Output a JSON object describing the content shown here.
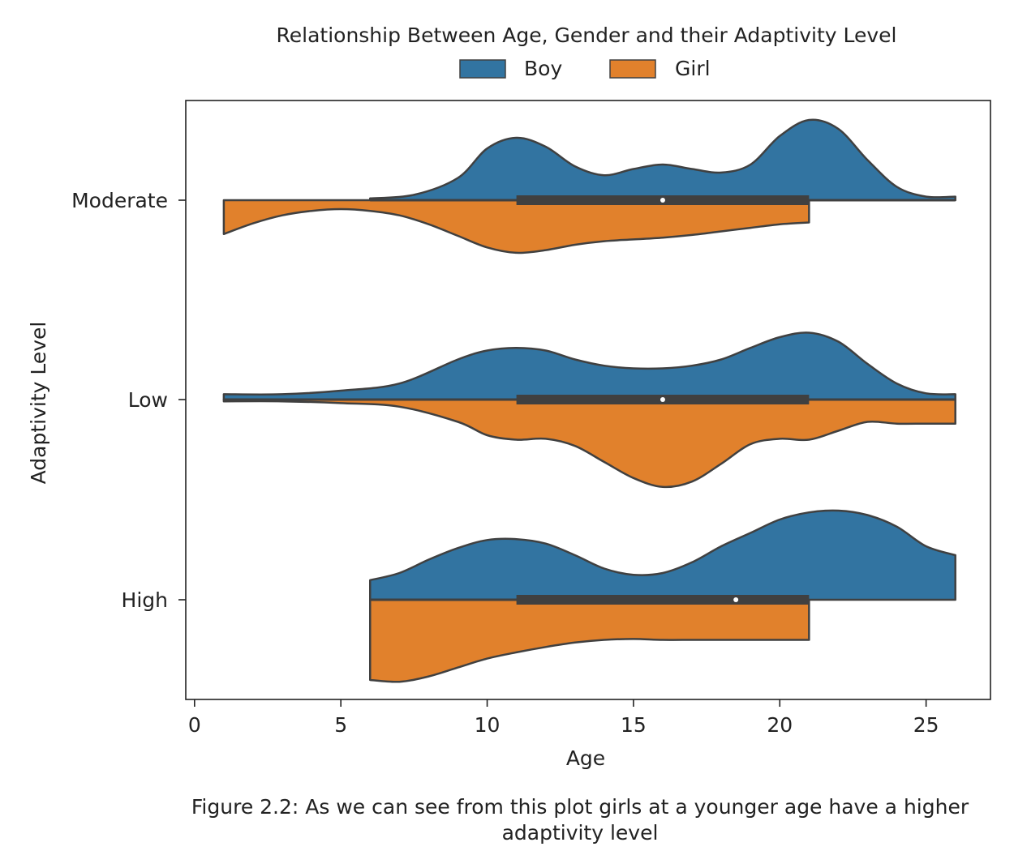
{
  "chart_data": {
    "type": "violin",
    "orientation": "horizontal",
    "split": true,
    "title": "Relationship Between Age, Gender and their Adaptivity Level",
    "xlabel": "Age",
    "ylabel": "Adaptivity Level",
    "xlim": [
      -0.3,
      27.2
    ],
    "xticks": [
      0,
      5,
      10,
      15,
      20,
      25
    ],
    "categories": [
      "Moderate",
      "Low",
      "High"
    ],
    "legend": {
      "position": "top-center",
      "entries": [
        "Boy",
        "Girl"
      ]
    },
    "colors": {
      "Boy": "#3274a1",
      "Girl": "#e1812c",
      "outline": "#404040",
      "box": "#404040",
      "median": "#ffffff"
    },
    "series": [
      {
        "name": "Boy",
        "side": "upper",
        "violins": [
          {
            "category": "Moderate",
            "range": [
              6,
              26
            ],
            "density": [
              [
                6,
                0.02
              ],
              [
                7.5,
                0.06
              ],
              [
                9,
                0.25
              ],
              [
                10,
                0.58
              ],
              [
                11,
                0.7
              ],
              [
                12,
                0.6
              ],
              [
                13,
                0.38
              ],
              [
                14,
                0.28
              ],
              [
                15,
                0.35
              ],
              [
                16,
                0.4
              ],
              [
                17,
                0.35
              ],
              [
                18,
                0.31
              ],
              [
                19,
                0.4
              ],
              [
                20,
                0.72
              ],
              [
                21,
                0.9
              ],
              [
                22,
                0.8
              ],
              [
                23,
                0.45
              ],
              [
                24,
                0.15
              ],
              [
                25,
                0.04
              ],
              [
                26,
                0.04
              ]
            ]
          },
          {
            "category": "Low",
            "range": [
              1,
              26
            ],
            "density": [
              [
                1,
                0.06
              ],
              [
                3,
                0.06
              ],
              [
                5,
                0.1
              ],
              [
                7,
                0.18
              ],
              [
                9,
                0.45
              ],
              [
                10,
                0.55
              ],
              [
                11,
                0.58
              ],
              [
                12,
                0.55
              ],
              [
                13,
                0.45
              ],
              [
                14,
                0.38
              ],
              [
                15,
                0.35
              ],
              [
                16,
                0.35
              ],
              [
                17,
                0.38
              ],
              [
                18,
                0.45
              ],
              [
                19,
                0.58
              ],
              [
                20,
                0.7
              ],
              [
                21,
                0.75
              ],
              [
                22,
                0.65
              ],
              [
                23,
                0.4
              ],
              [
                24,
                0.18
              ],
              [
                25,
                0.07
              ],
              [
                26,
                0.06
              ]
            ]
          },
          {
            "category": "High",
            "range": [
              6,
              26
            ],
            "density": [
              [
                6,
                0.22
              ],
              [
                7,
                0.3
              ],
              [
                8,
                0.45
              ],
              [
                9,
                0.58
              ],
              [
                10,
                0.67
              ],
              [
                11,
                0.68
              ],
              [
                12,
                0.63
              ],
              [
                13,
                0.5
              ],
              [
                14,
                0.35
              ],
              [
                15,
                0.28
              ],
              [
                16,
                0.3
              ],
              [
                17,
                0.42
              ],
              [
                18,
                0.6
              ],
              [
                19,
                0.75
              ],
              [
                20,
                0.9
              ],
              [
                21,
                0.98
              ],
              [
                22,
                1.0
              ],
              [
                23,
                0.95
              ],
              [
                24,
                0.82
              ],
              [
                25,
                0.6
              ],
              [
                26,
                0.5
              ]
            ]
          }
        ]
      },
      {
        "name": "Girl",
        "side": "lower",
        "violins": [
          {
            "category": "Moderate",
            "range": [
              1,
              21
            ],
            "density": [
              [
                1,
                0.38
              ],
              [
                2,
                0.26
              ],
              [
                3,
                0.17
              ],
              [
                4,
                0.12
              ],
              [
                5,
                0.1
              ],
              [
                6,
                0.12
              ],
              [
                7,
                0.17
              ],
              [
                8,
                0.27
              ],
              [
                9,
                0.4
              ],
              [
                10,
                0.53
              ],
              [
                11,
                0.59
              ],
              [
                12,
                0.56
              ],
              [
                13,
                0.5
              ],
              [
                14,
                0.46
              ],
              [
                15,
                0.44
              ],
              [
                16,
                0.42
              ],
              [
                17,
                0.39
              ],
              [
                18,
                0.35
              ],
              [
                19,
                0.31
              ],
              [
                20,
                0.27
              ],
              [
                21,
                0.25
              ]
            ]
          },
          {
            "category": "Low",
            "range": [
              1,
              26
            ],
            "density": [
              [
                1,
                0.02
              ],
              [
                3,
                0.02
              ],
              [
                5,
                0.04
              ],
              [
                7,
                0.08
              ],
              [
                9,
                0.25
              ],
              [
                10,
                0.4
              ],
              [
                11,
                0.45
              ],
              [
                12,
                0.44
              ],
              [
                13,
                0.52
              ],
              [
                14,
                0.7
              ],
              [
                15,
                0.88
              ],
              [
                16,
                0.98
              ],
              [
                17,
                0.92
              ],
              [
                18,
                0.72
              ],
              [
                19,
                0.5
              ],
              [
                20,
                0.44
              ],
              [
                21,
                0.45
              ],
              [
                22,
                0.35
              ],
              [
                23,
                0.25
              ],
              [
                24,
                0.27
              ],
              [
                25,
                0.27
              ],
              [
                26,
                0.27
              ]
            ]
          },
          {
            "category": "High",
            "range": [
              6,
              21
            ],
            "density": [
              [
                6,
                0.9
              ],
              [
                7,
                0.92
              ],
              [
                8,
                0.86
              ],
              [
                9,
                0.76
              ],
              [
                10,
                0.66
              ],
              [
                11,
                0.59
              ],
              [
                12,
                0.53
              ],
              [
                13,
                0.48
              ],
              [
                14,
                0.45
              ],
              [
                15,
                0.44
              ],
              [
                16,
                0.45
              ],
              [
                17,
                0.45
              ],
              [
                18,
                0.45
              ],
              [
                19,
                0.45
              ],
              [
                20,
                0.45
              ],
              [
                21,
                0.45
              ]
            ]
          }
        ]
      }
    ],
    "boxes": [
      {
        "category": "Moderate",
        "q1": 11,
        "q3": 21,
        "median": 16,
        "whisker": [
          6,
          26
        ]
      },
      {
        "category": "Low",
        "q1": 11,
        "q3": 21,
        "median": 16,
        "whisker": [
          1,
          26
        ]
      },
      {
        "category": "High",
        "q1": 11,
        "q3": 21,
        "median": 18.5,
        "whisker": [
          6,
          21
        ]
      }
    ]
  },
  "caption": "Figure 2.2: As we can see from this plot girls at a younger age have a higher adaptivity level"
}
